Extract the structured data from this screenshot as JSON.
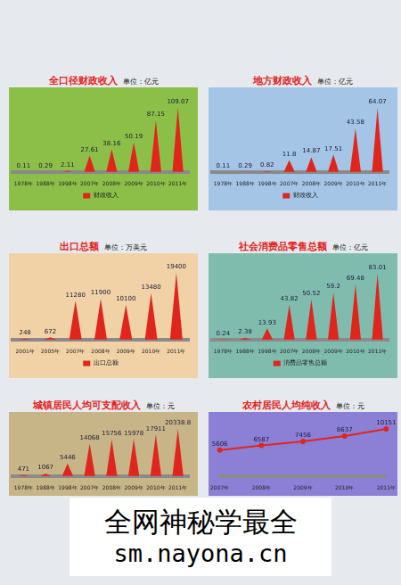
{
  "chart_data": [
    {
      "type": "bar",
      "title": "全口径财政收入",
      "subtitle": "单位：亿元",
      "categories": [
        "1978年",
        "1988年",
        "1998年",
        "2007年",
        "2008年",
        "2009年",
        "2010年",
        "2011年"
      ],
      "series": [
        {
          "name": "财政收入",
          "color": "#e0261c",
          "values": [
            0.11,
            0.29,
            2.11,
            27.61,
            38.16,
            50.19,
            87.15,
            109.07
          ]
        }
      ],
      "ylim": [
        0,
        125
      ],
      "grid": false,
      "tick_labels": "x",
      "data_labels": true,
      "legend": "bottom"
    },
    {
      "type": "bar",
      "title": "地方财政收入",
      "subtitle": "单位：亿元",
      "categories": [
        "1978年",
        "1988年",
        "1998年",
        "2007年",
        "2008年",
        "2009年",
        "2010年",
        "2011年"
      ],
      "series": [
        {
          "name": "财政收入",
          "color": "#e0261c",
          "values": [
            0.11,
            0.29,
            0.82,
            11.8,
            14.87,
            17.51,
            43.58,
            64.07
          ]
        }
      ],
      "ylim": [
        0,
        74
      ],
      "grid": false,
      "tick_labels": "x",
      "data_labels": true,
      "legend": "bottom"
    },
    {
      "type": "bar",
      "title": "出口总额",
      "subtitle": "单位：万美元",
      "categories": [
        "2001年",
        "2005年",
        "2007年",
        "2008年",
        "2009年",
        "2010年",
        "2011年"
      ],
      "series": [
        {
          "name": "出口总额",
          "color": "#e0261c",
          "values": [
            248,
            672,
            11280,
            11900,
            10100,
            13480,
            19400
          ]
        }
      ],
      "ylim": [
        0,
        22000
      ],
      "grid": false,
      "tick_labels": "x",
      "data_labels": true,
      "legend": "bottom"
    },
    {
      "type": "bar",
      "title": "社会消费品零售总额",
      "subtitle": "单位：亿元",
      "categories": [
        "1978年",
        "1988年",
        "1998年",
        "2007年",
        "2008年",
        "2009年",
        "2010年",
        "2011年"
      ],
      "series": [
        {
          "name": "消费品零售总额",
          "color": "#e0261c",
          "values": [
            0.24,
            2.38,
            13.93,
            43.82,
            50.52,
            59.2,
            69.48,
            83.01
          ]
        }
      ],
      "ylim": [
        0,
        95
      ],
      "grid": false,
      "tick_labels": "x",
      "data_labels": true,
      "legend": "bottom"
    },
    {
      "type": "bar",
      "title": "城镇居民人均可支配收入",
      "subtitle": "单位：元",
      "categories": [
        "1978年",
        "1988年",
        "1998年",
        "2007年",
        "2008年",
        "2009年",
        "2010年",
        "2011年"
      ],
      "values": [
        471,
        1067,
        5446,
        14068,
        15756,
        15978,
        17911,
        20338.8
      ],
      "color": "#e0261c",
      "ylim": [
        0,
        23000
      ],
      "grid": false,
      "tick_labels": "x",
      "data_labels": true
    },
    {
      "type": "line",
      "title": "农村居民人均纯收入",
      "subtitle": "单位：元",
      "categories": [
        "2007年",
        "2008年",
        "2009年",
        "2010年",
        "2011年"
      ],
      "values": [
        5606,
        6587,
        7456,
        8637,
        10151
      ],
      "color": "#e0261c",
      "ylim": [
        0,
        11500
      ],
      "grid": false,
      "tick_labels": "x",
      "data_labels": true
    }
  ],
  "watermark": {
    "line1": "全网神秘学最全",
    "line2": "sm.nayona.cn"
  }
}
